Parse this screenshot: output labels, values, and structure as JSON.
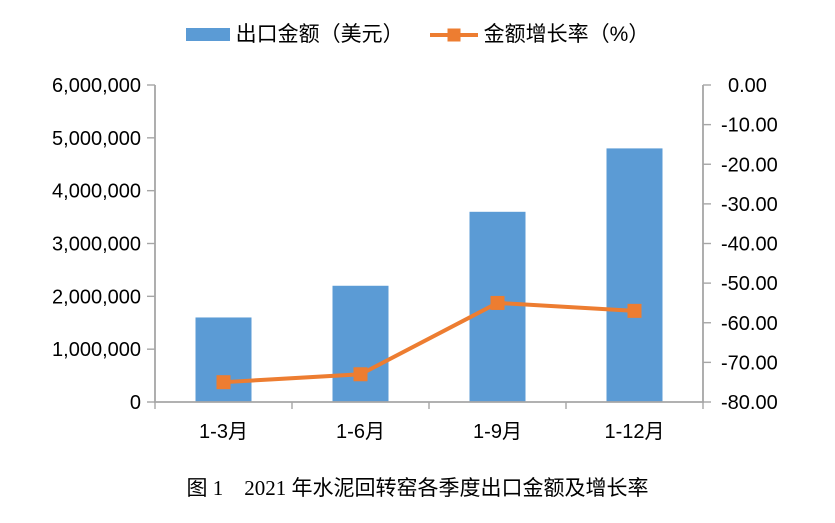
{
  "figure": {
    "caption": "图 1　2021 年水泥回转窑各季度出口金额及增长率"
  },
  "chart_data": {
    "type": "bar",
    "subtype": "bar+line combo, dual y-axes",
    "categories": [
      "1-3月",
      "1-6月",
      "1-9月",
      "1-12月"
    ],
    "series": [
      {
        "name": "出口金额（美元）",
        "type": "bar",
        "axis": "left",
        "color": "#5B9BD5",
        "values": [
          1600000,
          2200000,
          3600000,
          4800000
        ]
      },
      {
        "name": "金额增长率（%）",
        "type": "line",
        "axis": "right",
        "color": "#ED7D31",
        "values": [
          -75,
          -73,
          -55,
          -57
        ]
      }
    ],
    "left_axis": {
      "min": 0,
      "max": 6000000,
      "step": 1000000,
      "tick_labels": [
        "6,000,000",
        "5,000,000",
        "4,000,000",
        "3,000,000",
        "2,000,000",
        "1,000,000",
        "0"
      ]
    },
    "right_axis": {
      "min": -80,
      "max": 0,
      "step": 10,
      "tick_labels": [
        "0.00",
        "-10.00",
        "-20.00",
        "-30.00",
        "-40.00",
        "-50.00",
        "-60.00",
        "-70.00",
        "-80.00"
      ]
    },
    "legend_position": "top",
    "grid": false,
    "axis_color": "#A6A6A6",
    "text_color": "#000000",
    "background": "#FFFFFF"
  }
}
